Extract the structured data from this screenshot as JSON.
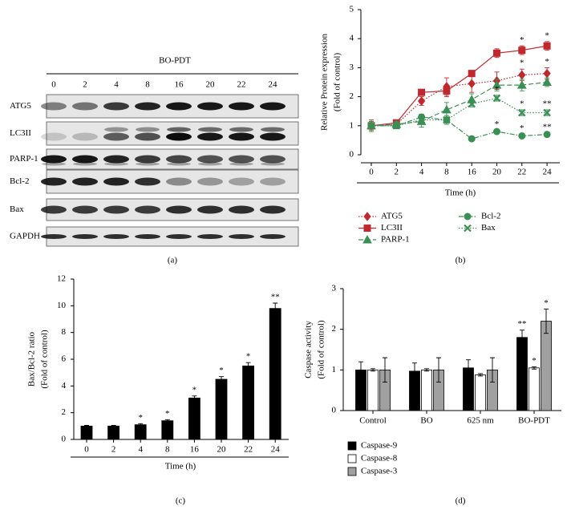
{
  "blot": {
    "panel_label": "(a)",
    "treatment": "BO-PDT",
    "lanes": [
      "0",
      "2",
      "4",
      "8",
      "16",
      "20",
      "22",
      "24"
    ],
    "rows": [
      "ATG5",
      "LC3II",
      "PARP-1",
      "Bcl-2",
      "Bax",
      "GAPDH"
    ]
  },
  "chart_data": [
    {
      "type": "line",
      "panel_label": "(b)",
      "ylabel": [
        "Relative Protein expression",
        "(Fold of control)"
      ],
      "xlabel": "Time (h)",
      "categories": [
        "0",
        "2",
        "4",
        "8",
        "16",
        "20",
        "22",
        "24"
      ],
      "ylim": [
        0,
        5
      ],
      "yticks": [
        0,
        1,
        2,
        3,
        4,
        5
      ],
      "series": [
        {
          "name": "ATG5",
          "color": "#c0282d",
          "marker": "diamond",
          "dash": "dotted",
          "values": [
            1,
            1.05,
            1.85,
            2.35,
            2.45,
            2.55,
            2.75,
            2.8
          ],
          "errors": [
            0.2,
            0.1,
            0.15,
            0.3,
            0.3,
            0.3,
            0.2,
            0.2
          ],
          "significance": [
            null,
            null,
            null,
            null,
            null,
            null,
            "*",
            "*"
          ]
        },
        {
          "name": "LC3II",
          "color": "#c0282d",
          "marker": "square",
          "dash": "solid",
          "values": [
            1,
            1.1,
            2.15,
            2.2,
            2.8,
            3.5,
            3.6,
            3.75
          ],
          "errors": [
            0.15,
            0.1,
            0.1,
            0.2,
            0.1,
            0.15,
            0.15,
            0.15
          ],
          "significance": [
            null,
            null,
            null,
            null,
            null,
            null,
            "*",
            "*"
          ]
        },
        {
          "name": "PARP-1",
          "color": "#3a8f55",
          "marker": "triangle",
          "dash": "dashed",
          "values": [
            1,
            1.05,
            1.15,
            1.55,
            1.9,
            2.4,
            2.4,
            2.5
          ],
          "errors": [
            0.2,
            0.1,
            0.2,
            0.25,
            0.2,
            0.2,
            0.2,
            0.15
          ],
          "significance": [
            null,
            null,
            null,
            null,
            null,
            null,
            null,
            null
          ]
        },
        {
          "name": "Bcl-2",
          "color": "#3a8f55",
          "marker": "circle",
          "dash": "dashdot",
          "values": [
            1,
            1,
            1.3,
            1.2,
            0.55,
            0.8,
            0.65,
            0.7
          ],
          "errors": [
            0.1,
            0.1,
            0.1,
            0.1,
            0.05,
            0.05,
            0.05,
            0.05
          ],
          "significance": [
            null,
            null,
            null,
            null,
            null,
            "*",
            "*",
            "**"
          ]
        },
        {
          "name": "Bax",
          "color": "#3a8f55",
          "marker": "x",
          "dash": "dotted",
          "values": [
            1,
            1,
            1.2,
            1.2,
            1.75,
            1.95,
            1.45,
            1.45
          ],
          "errors": [
            0.1,
            0.1,
            0.1,
            0.15,
            0.1,
            0.1,
            0.1,
            0.1
          ],
          "significance": [
            null,
            null,
            null,
            null,
            null,
            "*",
            "*",
            "**"
          ]
        }
      ]
    },
    {
      "type": "bar",
      "panel_label": "(c)",
      "ylabel": [
        "Bax/Bcl-2 ratio",
        "(Fold of control)"
      ],
      "xlabel": "Time (h)",
      "categories": [
        "0",
        "2",
        "4",
        "8",
        "16",
        "20",
        "22",
        "24"
      ],
      "ylim": [
        0,
        12
      ],
      "yticks": [
        0,
        2,
        4,
        6,
        8,
        10,
        12
      ],
      "series": [
        {
          "color": "#000000",
          "values": [
            1,
            1,
            1.1,
            1.4,
            3.1,
            4.5,
            5.5,
            9.8
          ],
          "errors": [
            0.05,
            0.05,
            0.08,
            0.08,
            0.15,
            0.2,
            0.25,
            0.4
          ],
          "significance": [
            null,
            null,
            "*",
            "*",
            "*",
            "*",
            "*",
            "**"
          ]
        }
      ]
    },
    {
      "type": "bar",
      "panel_label": "(d)",
      "ylabel": [
        "Caspase activity",
        "(Fold of control)"
      ],
      "categories": [
        "Control",
        "BO",
        "625 nm",
        "BO-PDT"
      ],
      "ylim": [
        0,
        3
      ],
      "yticks": [
        0,
        1,
        2,
        3
      ],
      "series": [
        {
          "name": "Caspase-9",
          "color": "#000000",
          "values": [
            1,
            0.97,
            1.05,
            1.8
          ],
          "errors": [
            0.2,
            0.2,
            0.2,
            0.18
          ],
          "significance": [
            null,
            null,
            null,
            "**"
          ]
        },
        {
          "name": "Caspase-8",
          "color": "#ffffff",
          "values": [
            1,
            1,
            0.88,
            1.05
          ],
          "errors": [
            0.03,
            0.03,
            0.03,
            0.03
          ],
          "significance": [
            null,
            null,
            null,
            "*"
          ]
        },
        {
          "name": "Caspase-3",
          "color": "#a0a0a0",
          "values": [
            1,
            1,
            1,
            2.2
          ],
          "errors": [
            0.3,
            0.3,
            0.3,
            0.3
          ],
          "significance": [
            null,
            null,
            null,
            "*"
          ]
        }
      ]
    }
  ]
}
